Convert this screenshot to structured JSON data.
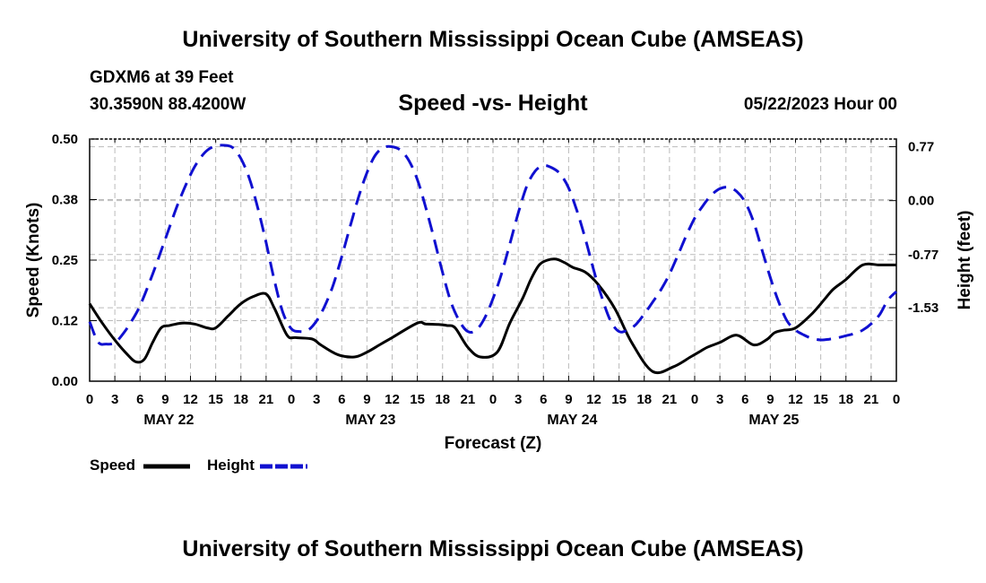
{
  "header": {
    "title": "University of Southern Mississippi Ocean Cube (AMSEAS)",
    "station": "GDXM6 at 39 Feet",
    "coordinates": "30.3590N  88.4200W",
    "subtitle": "Speed -vs- Height",
    "datetime": "05/22/2023 Hour 00"
  },
  "footer": {
    "title": "University of Southern Mississippi Ocean Cube (AMSEAS)"
  },
  "legend": {
    "speed_label": "Speed",
    "height_label": "Height"
  },
  "colors": {
    "speed": "#000000",
    "height": "#1010d0",
    "grid": "#bbbbbb"
  },
  "chart_data": {
    "type": "line",
    "xlabel": "Forecast (Z)",
    "ylabel_left": "Speed (Knots)",
    "ylabel_right": "Height (feet)",
    "x_range_hours": [
      0,
      96
    ],
    "x_tick_labels": [
      "0",
      "3",
      "6",
      "9",
      "12",
      "15",
      "18",
      "21",
      "0",
      "3",
      "6",
      "9",
      "12",
      "15",
      "18",
      "21",
      "0",
      "3",
      "6",
      "9",
      "12",
      "15",
      "18",
      "21",
      "0",
      "3",
      "6",
      "9",
      "12",
      "15",
      "18",
      "21",
      "0"
    ],
    "day_labels": [
      "MAY 22",
      "MAY 23",
      "MAY 24",
      "MAY 25"
    ],
    "day_label_hours": [
      9,
      33,
      57,
      81
    ],
    "y_left": {
      "range": [
        0,
        0.5
      ],
      "ticks": [
        0.0,
        0.125,
        0.25,
        0.375,
        0.5
      ],
      "tick_labels": [
        "0.00",
        "0.12",
        "0.25",
        "0.38",
        "0.50"
      ]
    },
    "y_right": {
      "range": [
        -2.58,
        0.88
      ],
      "ticks": [
        -1.53,
        -0.77,
        0.0,
        0.77
      ],
      "tick_labels": [
        "-1.53",
        "-0.77",
        "0.00",
        "0.77"
      ]
    },
    "series": [
      {
        "name": "Speed",
        "axis": "left",
        "style": "solid",
        "x": [
          0,
          1.5,
          3,
          4.5,
          5.5,
          6.5,
          7.5,
          8.5,
          9.5,
          11,
          12.5,
          14,
          15,
          16.5,
          18,
          19.5,
          21,
          22,
          23.5,
          24.5,
          26.5,
          27.5,
          29.5,
          31.5,
          33,
          34.5,
          36,
          39,
          40,
          41.5,
          42.5,
          43.5,
          45,
          46.5,
          48.5,
          50,
          51.5,
          52.5,
          53.5,
          54.5,
          55.5,
          56.5,
          57.5,
          59,
          60.5,
          62.5,
          64.5,
          67,
          69.5,
          71.5,
          72.5,
          73.5,
          75,
          77,
          79,
          80.5,
          81.5,
          82.5,
          84,
          86,
          87.5,
          88.5,
          90,
          92,
          94,
          96
        ],
        "y": [
          0.16,
          0.12,
          0.085,
          0.055,
          0.04,
          0.045,
          0.08,
          0.11,
          0.115,
          0.12,
          0.118,
          0.11,
          0.11,
          0.135,
          0.16,
          0.175,
          0.18,
          0.15,
          0.095,
          0.09,
          0.087,
          0.075,
          0.055,
          0.05,
          0.06,
          0.075,
          0.09,
          0.12,
          0.118,
          0.117,
          0.115,
          0.11,
          0.07,
          0.05,
          0.06,
          0.12,
          0.17,
          0.21,
          0.24,
          0.25,
          0.252,
          0.245,
          0.235,
          0.225,
          0.2,
          0.15,
          0.08,
          0.02,
          0.03,
          0.05,
          0.06,
          0.07,
          0.08,
          0.095,
          0.075,
          0.085,
          0.1,
          0.105,
          0.11,
          0.14,
          0.17,
          0.19,
          0.21,
          0.24,
          0.24,
          0.24
        ]
      },
      {
        "name": "Height",
        "axis": "right",
        "style": "dashed",
        "x": [
          0,
          1,
          2,
          3,
          4,
          5,
          6,
          7.5,
          9,
          10.5,
          12,
          13,
          14,
          15,
          16,
          17,
          18,
          19,
          20,
          21,
          22,
          23,
          24,
          25,
          26,
          27,
          28,
          29,
          30,
          31,
          32,
          33,
          34,
          35,
          36,
          37,
          38,
          39,
          40,
          41,
          42,
          43,
          44,
          45,
          46,
          47,
          48,
          49,
          50,
          51,
          52,
          53,
          54,
          55,
          56,
          57,
          58,
          59,
          60,
          61,
          62,
          63,
          64,
          65,
          66,
          67,
          68,
          69,
          70,
          71,
          72,
          73,
          74,
          75,
          76,
          77,
          78,
          79,
          80,
          81,
          82,
          83,
          84,
          85,
          86,
          87,
          88,
          89,
          90,
          91,
          92,
          93,
          94,
          95,
          96
        ],
        "y": [
          -1.73,
          -2.02,
          -2.05,
          -2.03,
          -1.9,
          -1.72,
          -1.5,
          -1.05,
          -0.55,
          -0.05,
          0.37,
          0.58,
          0.72,
          0.78,
          0.79,
          0.76,
          0.6,
          0.32,
          -0.1,
          -0.6,
          -1.15,
          -1.6,
          -1.83,
          -1.87,
          -1.85,
          -1.72,
          -1.5,
          -1.2,
          -0.8,
          -0.37,
          0.05,
          0.4,
          0.65,
          0.76,
          0.77,
          0.72,
          0.57,
          0.3,
          -0.1,
          -0.55,
          -1.03,
          -1.45,
          -1.72,
          -1.87,
          -1.85,
          -1.68,
          -1.4,
          -1.05,
          -0.62,
          -0.18,
          0.2,
          0.42,
          0.5,
          0.47,
          0.38,
          0.18,
          -0.15,
          -0.55,
          -1.0,
          -1.4,
          -1.72,
          -1.87,
          -1.85,
          -1.77,
          -1.62,
          -1.45,
          -1.27,
          -1.05,
          -0.78,
          -0.5,
          -0.25,
          -0.07,
          0.08,
          0.17,
          0.19,
          0.13,
          -0.02,
          -0.3,
          -0.7,
          -1.1,
          -1.45,
          -1.72,
          -1.85,
          -1.92,
          -1.97,
          -1.99,
          -1.98,
          -1.96,
          -1.93,
          -1.9,
          -1.85,
          -1.76,
          -1.63,
          -1.42,
          -1.3
        ]
      }
    ]
  }
}
